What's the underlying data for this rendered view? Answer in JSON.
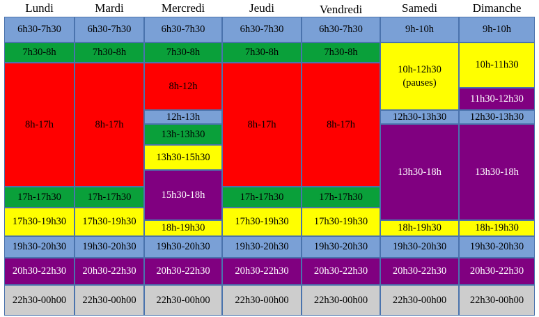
{
  "days": [
    "Lundi",
    "Mardi",
    "Mercredi",
    "Jeudi",
    "Vendredi",
    "Samedi",
    "Dimanche"
  ],
  "slots": {
    "lundi": [
      "6h30-7h30",
      "7h30-8h",
      "8h-17h",
      "17h-17h30",
      "17h30-19h30",
      "19h30-20h30",
      "20h30-22h30",
      "22h30-00h00"
    ],
    "mardi": [
      "6h30-7h30",
      "7h30-8h",
      "8h-17h",
      "17h-17h30",
      "17h30-19h30",
      "19h30-20h30",
      "20h30-22h30",
      "22h30-00h00"
    ],
    "mercredi": [
      "6h30-7h30",
      "7h30-8h",
      "8h-12h",
      "12h-13h",
      "13h-13h30",
      "13h30-15h30",
      "15h30-18h",
      "18h-19h30",
      "19h30-20h30",
      "20h30-22h30",
      "22h30-00h00"
    ],
    "jeudi": [
      "6h30-7h30",
      "7h30-8h",
      "8h-17h",
      "17h-17h30",
      "17h30-19h30",
      "19h30-20h30",
      "20h30-22h30",
      "22h30-00h00"
    ],
    "vendredi": [
      "6h30-7h30",
      "7h30-8h",
      "8h-17h",
      "17h-17h30",
      "17h30-19h30",
      "19h30-20h30",
      "20h30-22h30",
      "22h30-00h00"
    ],
    "samedi": [
      "9h-10h",
      "10h-12h30\n(pauses)",
      "12h30-13h30",
      "13h30-18h",
      "18h-19h30",
      "19h30-20h30",
      "20h30-22h30",
      "22h30-00h00"
    ],
    "dimanche": [
      "9h-10h",
      "10h-11h30",
      "11h30-12h30",
      "12h30-13h30",
      "13h30-18h",
      "18h-19h30",
      "19h30-20h30",
      "20h30-22h30",
      "22h30-00h00"
    ]
  },
  "colors": {
    "blue": "#7aa0d6",
    "green": "#0aa03a",
    "red": "#ff0000",
    "yellow": "#ffff00",
    "purple": "#800080",
    "grey": "#cdcdcd",
    "border": "#4a73ad"
  }
}
